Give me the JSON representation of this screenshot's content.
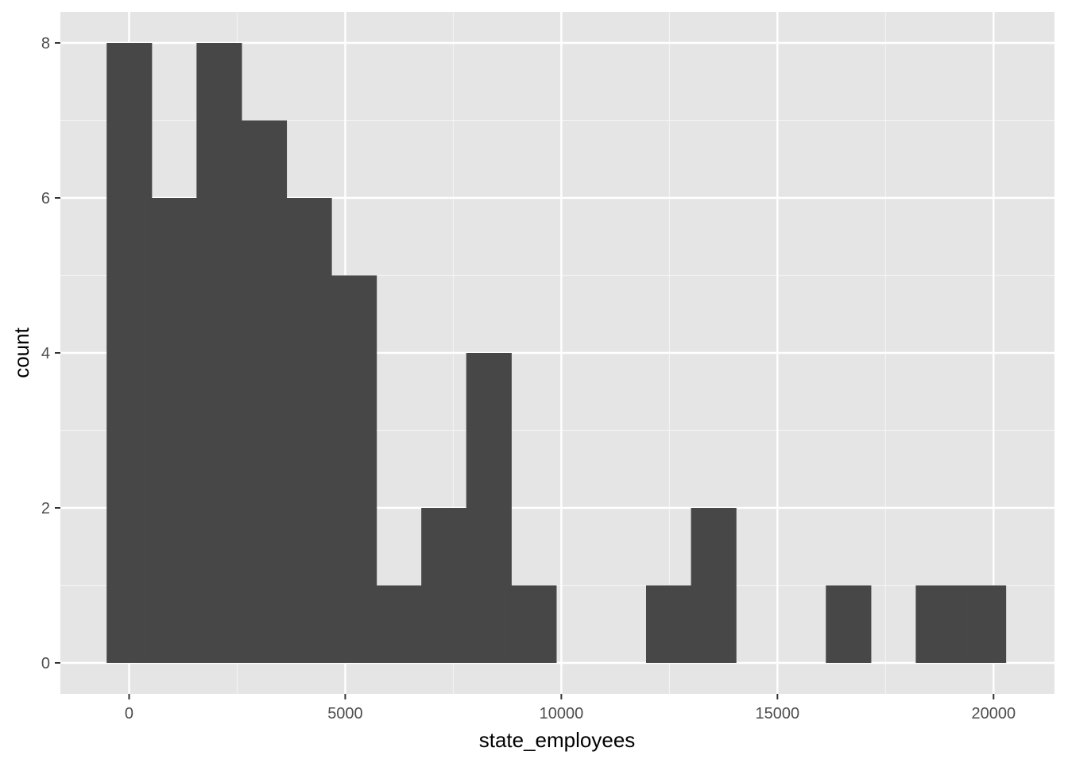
{
  "chart_data": {
    "type": "bar",
    "subtype": "histogram",
    "xlabel": "state_employees",
    "ylabel": "count",
    "xlim": [
      -1590,
      21410
    ],
    "ylim": [
      -0.4,
      8.4
    ],
    "x_ticks": [
      0,
      5000,
      10000,
      15000,
      20000
    ],
    "x_tick_labels": [
      "0",
      "5000",
      "10000",
      "15000",
      "20000"
    ],
    "y_ticks": [
      0,
      2,
      4,
      6,
      8
    ],
    "y_tick_labels": [
      "0",
      "2",
      "4",
      "6",
      "8"
    ],
    "bins": [
      {
        "x0": -520,
        "x1": 520,
        "count": 8
      },
      {
        "x0": 520,
        "x1": 1560,
        "count": 6
      },
      {
        "x0": 1560,
        "x1": 2600,
        "count": 8
      },
      {
        "x0": 2600,
        "x1": 3640,
        "count": 7
      },
      {
        "x0": 3640,
        "x1": 4680,
        "count": 6
      },
      {
        "x0": 4680,
        "x1": 5720,
        "count": 5
      },
      {
        "x0": 5720,
        "x1": 6760,
        "count": 1
      },
      {
        "x0": 6760,
        "x1": 7800,
        "count": 2
      },
      {
        "x0": 7800,
        "x1": 8840,
        "count": 4
      },
      {
        "x0": 8840,
        "x1": 9880,
        "count": 1
      },
      {
        "x0": 9880,
        "x1": 10920,
        "count": 0
      },
      {
        "x0": 10920,
        "x1": 11960,
        "count": 0
      },
      {
        "x0": 11960,
        "x1": 13000,
        "count": 1
      },
      {
        "x0": 13000,
        "x1": 14040,
        "count": 2
      },
      {
        "x0": 14040,
        "x1": 15080,
        "count": 0
      },
      {
        "x0": 15080,
        "x1": 16120,
        "count": 0
      },
      {
        "x0": 16120,
        "x1": 17160,
        "count": 1
      },
      {
        "x0": 17160,
        "x1": 18200,
        "count": 0
      },
      {
        "x0": 18200,
        "x1": 19240,
        "count": 1
      },
      {
        "x0": 19240,
        "x1": 20280,
        "count": 1
      }
    ],
    "bar_color": "#474747",
    "panel_background": "#e5e5e5",
    "grid": true,
    "grid_color": "#ffffff",
    "legend": "none"
  }
}
